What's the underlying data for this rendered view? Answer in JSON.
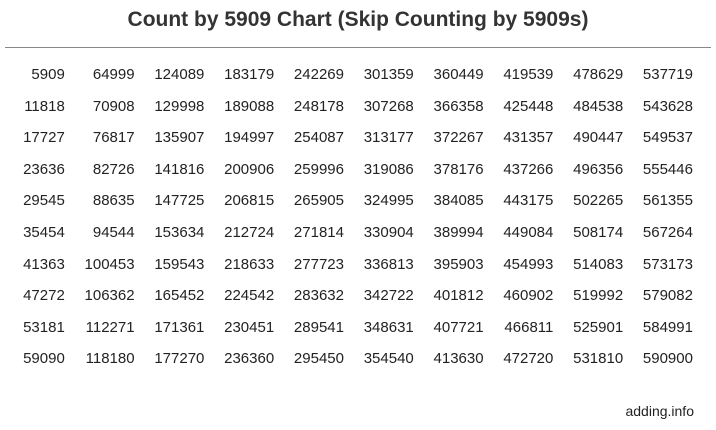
{
  "title": "Count by 5909 Chart (Skip Counting by 5909s)",
  "rows": [
    [
      "5909",
      "64999",
      "124089",
      "183179",
      "242269",
      "301359",
      "360449",
      "419539",
      "478629",
      "537719"
    ],
    [
      "11818",
      "70908",
      "129998",
      "189088",
      "248178",
      "307268",
      "366358",
      "425448",
      "484538",
      "543628"
    ],
    [
      "17727",
      "76817",
      "135907",
      "194997",
      "254087",
      "313177",
      "372267",
      "431357",
      "490447",
      "549537"
    ],
    [
      "23636",
      "82726",
      "141816",
      "200906",
      "259996",
      "319086",
      "378176",
      "437266",
      "496356",
      "555446"
    ],
    [
      "29545",
      "88635",
      "147725",
      "206815",
      "265905",
      "324995",
      "384085",
      "443175",
      "502265",
      "561355"
    ],
    [
      "35454",
      "94544",
      "153634",
      "212724",
      "271814",
      "330904",
      "389994",
      "449084",
      "508174",
      "567264"
    ],
    [
      "41363",
      "100453",
      "159543",
      "218633",
      "277723",
      "336813",
      "395903",
      "454993",
      "514083",
      "573173"
    ],
    [
      "47272",
      "106362",
      "165452",
      "224542",
      "283632",
      "342722",
      "401812",
      "460902",
      "519992",
      "579082"
    ],
    [
      "53181",
      "112271",
      "171361",
      "230451",
      "289541",
      "348631",
      "407721",
      "466811",
      "525901",
      "584991"
    ],
    [
      "59090",
      "118180",
      "177270",
      "236360",
      "295450",
      "354540",
      "413630",
      "472720",
      "531810",
      "590900"
    ]
  ],
  "footer": "adding.info"
}
